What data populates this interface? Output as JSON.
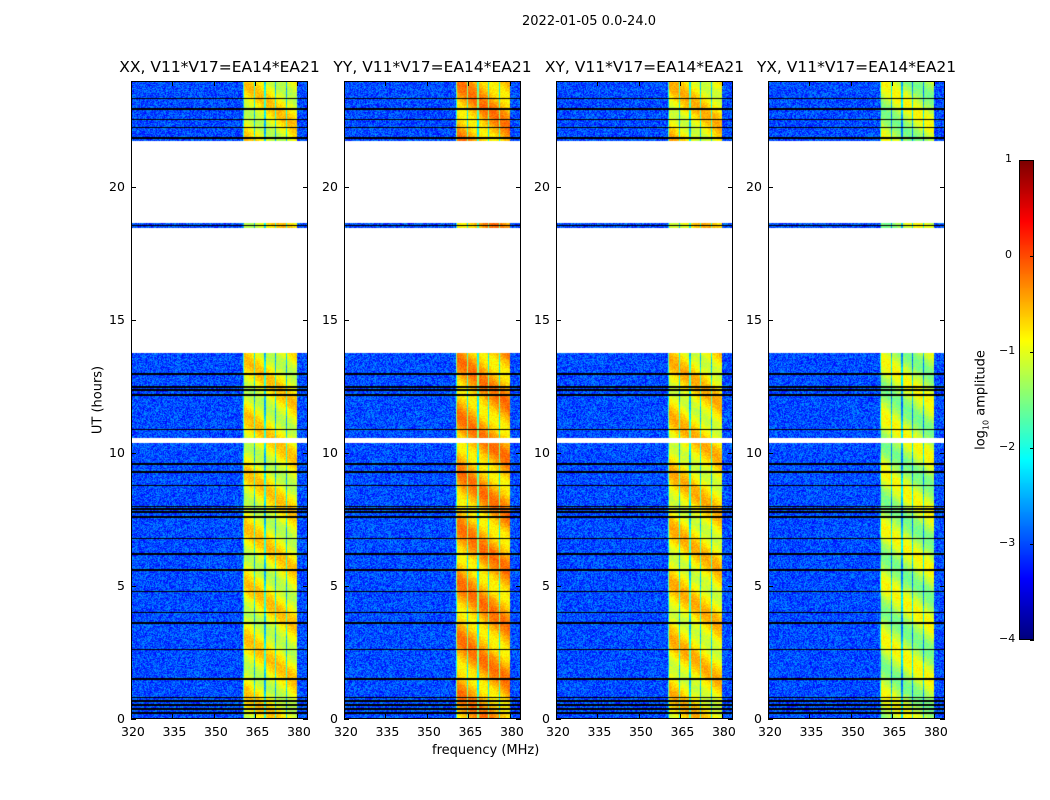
{
  "chart_data": {
    "type": "heatmap",
    "title": "2022-01-05 0.0-24.0",
    "xlabel": "frequency (MHz)",
    "ylabel": "UT (hours)",
    "xlim": [
      320,
      384
    ],
    "ylim": [
      0,
      24
    ],
    "xticks": [
      320,
      335,
      350,
      365,
      380
    ],
    "yticks": [
      0,
      5,
      10,
      15,
      20
    ],
    "panels": [
      {
        "title": "XX, V11*V17=EA14*EA21",
        "band_level": -0.9
      },
      {
        "title": "YY, V11*V17=EA14*EA21",
        "band_level": -0.5
      },
      {
        "title": "XY, V11*V17=EA14*EA21",
        "band_level": -0.8
      },
      {
        "title": "YX, V11*V17=EA14*EA21",
        "band_level": -1.2
      }
    ],
    "background_level": -3.0,
    "strong_band_mhz": [
      360.4,
      380
    ],
    "data_gaps_hours": [
      [
        13.8,
        18.5
      ],
      [
        18.7,
        21.8
      ],
      [
        10.4,
        10.6
      ]
    ],
    "flagged_rows_hours": [
      0.2,
      0.35,
      0.5,
      0.65,
      0.8,
      1.5,
      2.6,
      3.6,
      4.0,
      4.8,
      5.6,
      6.2,
      6.8,
      7.6,
      7.8,
      7.9,
      8.0,
      8.8,
      9.3,
      9.6,
      10.9,
      12.2,
      12.4,
      12.5,
      13.0,
      18.6,
      21.9,
      22.3,
      22.6,
      23.0,
      23.4
    ],
    "colorbar": {
      "label_prefix": "log",
      "label_sub": "10",
      "label_suffix": " amplitude",
      "range": [
        -4,
        1
      ],
      "ticks": [
        "1",
        "0",
        "−1",
        "−2",
        "−3",
        "−4"
      ],
      "colormap": "jet"
    }
  }
}
